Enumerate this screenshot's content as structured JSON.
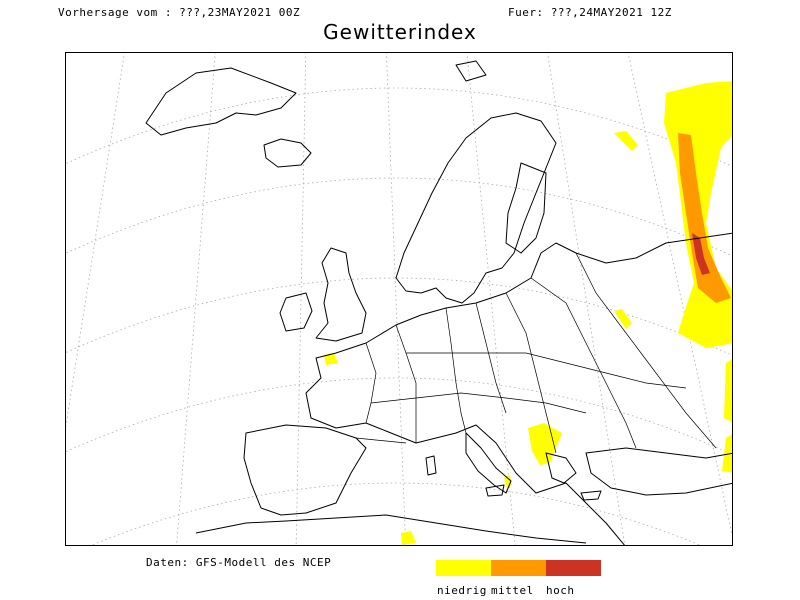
{
  "header": {
    "forecast_from": "Vorhersage vom : ???,23MAY2021 00Z",
    "valid_for": "Fuer: ???,24MAY2021 12Z"
  },
  "title": "Gewitterindex",
  "map": {
    "region": "Europa",
    "graticule": "dotted",
    "hazard_areas": [
      {
        "area": "Ukraine/Russland (Ost)",
        "level": "hoch"
      },
      {
        "area": "Weißrussland/Russland",
        "level": "mittel"
      },
      {
        "area": "Westfrankreich",
        "level": "niedrig"
      },
      {
        "area": "Balkan/Griechenland",
        "level": "niedrig"
      },
      {
        "area": "Türkei",
        "level": "niedrig"
      },
      {
        "area": "Nordafrika",
        "level": "niedrig"
      },
      {
        "area": "Sizilien",
        "level": "niedrig"
      }
    ]
  },
  "footer": {
    "source": "Daten: GFS-Modell des NCEP"
  },
  "legend": {
    "items": [
      {
        "label": "niedrig",
        "color": "#ffff00"
      },
      {
        "label": "mittel",
        "color": "#ff9900"
      },
      {
        "label": "hoch",
        "color": "#cc3322"
      }
    ]
  }
}
